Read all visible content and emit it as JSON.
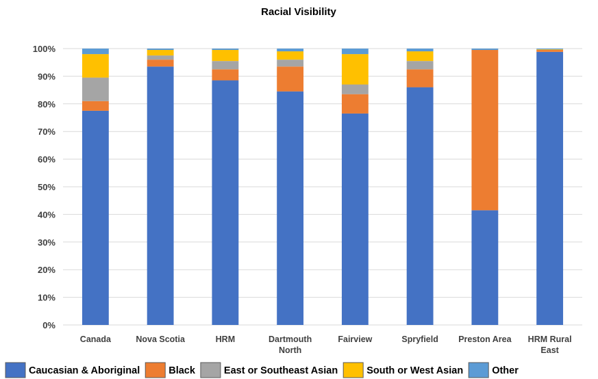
{
  "chart_data": {
    "type": "bar",
    "stacked": true,
    "title": "Racial Visibility",
    "xlabel": "",
    "ylabel": "",
    "ylim": [
      0,
      100
    ],
    "y_ticks": [
      "0%",
      "10%",
      "20%",
      "30%",
      "40%",
      "50%",
      "60%",
      "70%",
      "80%",
      "90%",
      "100%"
    ],
    "grid": true,
    "legend_position": "bottom",
    "categories": [
      [
        "Canada"
      ],
      [
        "Nova Scotia"
      ],
      [
        "HRM"
      ],
      [
        "Dartmouth",
        "North"
      ],
      [
        "Fairview"
      ],
      [
        "Spryfield"
      ],
      [
        "Preston Area"
      ],
      [
        "HRM Rural",
        "East"
      ]
    ],
    "series": [
      {
        "name": "Caucasian & Aboriginal",
        "color": "#4472C4",
        "values": [
          77.5,
          93.5,
          88.5,
          84.5,
          76.5,
          86.0,
          41.5,
          98.8
        ]
      },
      {
        "name": "Black",
        "color": "#ED7D31",
        "values": [
          3.5,
          2.5,
          4.0,
          9.0,
          7.0,
          6.5,
          58.0,
          0.7
        ]
      },
      {
        "name": "East or Southeast Asian",
        "color": "#A5A5A5",
        "values": [
          8.5,
          1.5,
          3.0,
          2.5,
          3.5,
          3.0,
          0.0,
          0.0
        ]
      },
      {
        "name": "South or West Asian",
        "color": "#FFC000",
        "values": [
          8.5,
          2.0,
          4.0,
          3.0,
          11.0,
          3.5,
          0.0,
          0.2
        ]
      },
      {
        "name": "Other",
        "color": "#5B9BD5",
        "values": [
          2.0,
          0.5,
          0.5,
          1.0,
          2.0,
          1.0,
          0.5,
          0.3
        ]
      }
    ]
  }
}
